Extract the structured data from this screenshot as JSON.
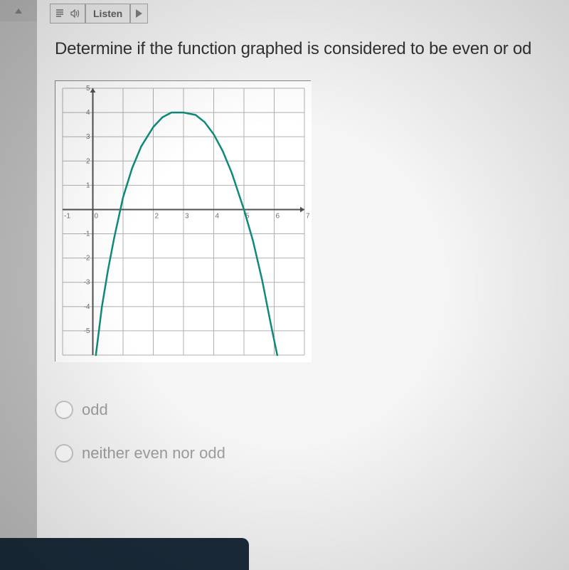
{
  "toolbar": {
    "listen_label": "Listen"
  },
  "question": {
    "text": "Determine if the function graphed is considered to be even or od"
  },
  "chart": {
    "type": "line",
    "background_color": "#ffffff",
    "grid_color": "#b0b0b0",
    "grid_width": 1,
    "axis_color": "#505050",
    "axis_width": 2,
    "border_color": "#888888",
    "x_label_color": "#707070",
    "y_label_color": "#707070",
    "label_fontsize": 10,
    "xlim": [
      -1,
      7
    ],
    "ylim": [
      -6,
      5
    ],
    "xtick_step": 1,
    "ytick_step": 1,
    "x_ticks": [
      -1,
      0,
      1,
      2,
      3,
      4,
      5,
      6,
      7
    ],
    "y_ticks": [
      -6,
      -5,
      -4,
      -3,
      -2,
      -1,
      0,
      1,
      2,
      3,
      4,
      5
    ],
    "x_labels": {
      "-1": "-1",
      "0": "0",
      "2": "2",
      "3": "3",
      "4": "4",
      "5": "5",
      "6": "6",
      "7": "7"
    },
    "y_labels": {
      "5": "5",
      "4": "4",
      "3": "3",
      "2": "2",
      "1": "1",
      "-1": "-1",
      "-2": "-2",
      "-3": "-3",
      "-4": "-4",
      "-5": "-5"
    },
    "series": {
      "color": "#0f8a7a",
      "width": 2.5,
      "points": [
        [
          0.1,
          -6
        ],
        [
          0.3,
          -4
        ],
        [
          0.5,
          -2.5
        ],
        [
          0.7,
          -1.2
        ],
        [
          1.0,
          0.5
        ],
        [
          1.3,
          1.7
        ],
        [
          1.6,
          2.6
        ],
        [
          2.0,
          3.4
        ],
        [
          2.3,
          3.8
        ],
        [
          2.6,
          4.0
        ],
        [
          3.0,
          4.0
        ],
        [
          3.4,
          3.9
        ],
        [
          3.7,
          3.6
        ],
        [
          4.0,
          3.1
        ],
        [
          4.3,
          2.4
        ],
        [
          4.6,
          1.5
        ],
        [
          5.0,
          0.0
        ],
        [
          5.3,
          -1.3
        ],
        [
          5.6,
          -2.9
        ],
        [
          5.9,
          -4.8
        ],
        [
          6.1,
          -6
        ]
      ]
    }
  },
  "answers": {
    "opt1": "odd",
    "opt2": "neither even nor odd"
  }
}
